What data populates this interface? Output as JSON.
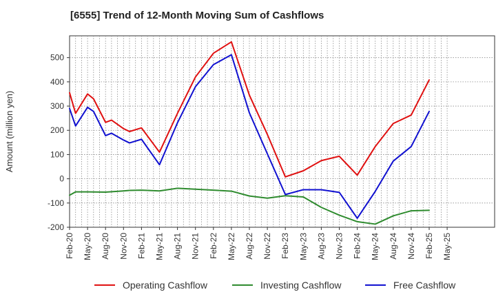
{
  "chart_data": {
    "type": "line",
    "title": "[6555]  Trend of 12-Month Moving Sum of Cashflows",
    "ylabel": "Amount (million yen)",
    "xlabel": "",
    "ylim": [
      -200,
      590
    ],
    "yticks": [
      -200,
      -100,
      0,
      100,
      200,
      300,
      400,
      500
    ],
    "x_tick_labels": [
      "Feb-20",
      "May-20",
      "Aug-20",
      "Nov-20",
      "Feb-21",
      "May-21",
      "Aug-21",
      "Nov-21",
      "Feb-22",
      "May-22",
      "Aug-22",
      "Nov-22",
      "Feb-23",
      "May-23",
      "Aug-23",
      "Nov-23",
      "Feb-24",
      "May-24",
      "Aug-24",
      "Nov-24",
      "Feb-25",
      "May-25"
    ],
    "x": [
      "Feb-20",
      "Mar-20",
      "Apr-20",
      "May-20",
      "Jun-20",
      "Jul-20",
      "Aug-20",
      "Sep-20",
      "Oct-20",
      "Nov-20",
      "Dec-20",
      "Jan-21",
      "Feb-21",
      "Mar-21",
      "Apr-21",
      "May-21",
      "Jun-21",
      "Jul-21",
      "Aug-21",
      "Sep-21",
      "Oct-21",
      "Nov-21",
      "Dec-21",
      "Jan-22",
      "Feb-22",
      "Mar-22",
      "Apr-22",
      "May-22",
      "Jun-22",
      "Jul-22",
      "Aug-22",
      "Sep-22",
      "Oct-22",
      "Nov-22",
      "Dec-22",
      "Jan-23",
      "Feb-23",
      "Mar-23",
      "Apr-23",
      "May-23",
      "Jun-23",
      "Jul-23",
      "Aug-23",
      "Sep-23",
      "Oct-23",
      "Nov-23",
      "Dec-23",
      "Jan-24",
      "Feb-24",
      "Mar-24",
      "Apr-24",
      "May-24",
      "Jun-24",
      "Jul-24",
      "Aug-24",
      "Sep-24",
      "Oct-24",
      "Nov-24",
      "Dec-24",
      "Jan-25",
      "Feb-25"
    ],
    "grid": true,
    "legend_position": "bottom",
    "series": [
      {
        "name": "Operating Cashflow",
        "color": "#e01010",
        "points": [
          [
            "Feb-20",
            355
          ],
          [
            "Mar-20",
            270
          ],
          [
            "May-20",
            350
          ],
          [
            "Jun-20",
            330
          ],
          [
            "Aug-20",
            233
          ],
          [
            "Sep-20",
            242
          ],
          [
            "Nov-20",
            207
          ],
          [
            "Dec-20",
            195
          ],
          [
            "Feb-21",
            210
          ],
          [
            "May-21",
            110
          ],
          [
            "Aug-21",
            270
          ],
          [
            "Nov-21",
            420
          ],
          [
            "Feb-22",
            518
          ],
          [
            "May-22",
            565
          ],
          [
            "Aug-22",
            345
          ],
          [
            "Nov-22",
            183
          ],
          [
            "Feb-23",
            8
          ],
          [
            "May-23",
            33
          ],
          [
            "Aug-23",
            75
          ],
          [
            "Nov-23",
            93
          ],
          [
            "Feb-24",
            15
          ],
          [
            "May-24",
            133
          ],
          [
            "Aug-24",
            228
          ],
          [
            "Nov-24",
            263
          ],
          [
            "Feb-25",
            408
          ]
        ]
      },
      {
        "name": "Investing Cashflow",
        "color": "#2e8b2e",
        "points": [
          [
            "Feb-20",
            -68
          ],
          [
            "Mar-20",
            -54
          ],
          [
            "May-20",
            -54
          ],
          [
            "Aug-20",
            -55
          ],
          [
            "Nov-20",
            -50
          ],
          [
            "Dec-20",
            -48
          ],
          [
            "Feb-21",
            -47
          ],
          [
            "May-21",
            -50
          ],
          [
            "Aug-21",
            -39
          ],
          [
            "Nov-21",
            -43
          ],
          [
            "Feb-22",
            -47
          ],
          [
            "May-22",
            -51
          ],
          [
            "Aug-22",
            -71
          ],
          [
            "Nov-22",
            -80
          ],
          [
            "Feb-23",
            -70
          ],
          [
            "May-23",
            -75
          ],
          [
            "Aug-23",
            -118
          ],
          [
            "Nov-23",
            -150
          ],
          [
            "Feb-24",
            -177
          ],
          [
            "May-24",
            -187
          ],
          [
            "Aug-24",
            -153
          ],
          [
            "Nov-24",
            -132
          ],
          [
            "Feb-25",
            -130
          ]
        ]
      },
      {
        "name": "Free Cashflow",
        "color": "#1010d0",
        "points": [
          [
            "Feb-20",
            290
          ],
          [
            "Mar-20",
            218
          ],
          [
            "May-20",
            295
          ],
          [
            "Jun-20",
            278
          ],
          [
            "Aug-20",
            178
          ],
          [
            "Sep-20",
            188
          ],
          [
            "Nov-20",
            160
          ],
          [
            "Dec-20",
            148
          ],
          [
            "Feb-21",
            163
          ],
          [
            "May-21",
            58
          ],
          [
            "Aug-21",
            231
          ],
          [
            "Nov-21",
            380
          ],
          [
            "Feb-22",
            471
          ],
          [
            "May-22",
            512
          ],
          [
            "Aug-22",
            272
          ],
          [
            "Nov-22",
            103
          ],
          [
            "Feb-23",
            -65
          ],
          [
            "May-23",
            -45
          ],
          [
            "Aug-23",
            -45
          ],
          [
            "Nov-23",
            -56
          ],
          [
            "Feb-24",
            -163
          ],
          [
            "May-24",
            -52
          ],
          [
            "Aug-24",
            73
          ],
          [
            "Nov-24",
            133
          ],
          [
            "Feb-25",
            278
          ]
        ]
      }
    ]
  }
}
